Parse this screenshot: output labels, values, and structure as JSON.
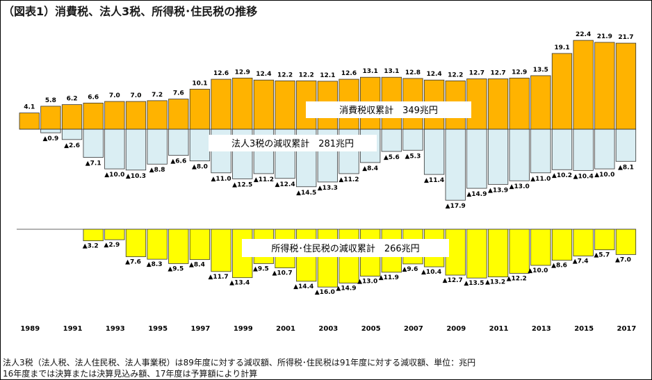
{
  "title": "（図表1）消費税、法人3税、所得税･住民税の推移",
  "notes": [
    "法人3税（法人税、法人住民税、法人事業税）は89年度に対する減収額、所得税･住民税は91年度に対する減収額、単位：兆円",
    "16年度までは決算または決算見込み額、17年度は予算額により計算"
  ],
  "chart_data": [
    {
      "type": "bar",
      "name": "consumption-and-corporate",
      "unit": "兆円",
      "categories": [
        1989,
        1990,
        1991,
        1992,
        1993,
        1994,
        1995,
        1996,
        1997,
        1998,
        1999,
        2000,
        2001,
        2002,
        2003,
        2004,
        2005,
        2006,
        2007,
        2008,
        2009,
        2010,
        2011,
        2012,
        2013,
        2014,
        2015,
        2016,
        2017
      ],
      "series": [
        {
          "name": "消費税",
          "label": "消費税収累計　349兆円",
          "color": "#FFB300",
          "values": [
            4.1,
            5.8,
            6.2,
            6.6,
            7.0,
            7.0,
            7.2,
            7.6,
            10.1,
            12.6,
            12.9,
            12.4,
            12.2,
            12.2,
            12.1,
            12.6,
            13.1,
            13.1,
            12.8,
            12.4,
            12.2,
            12.7,
            12.7,
            12.9,
            13.5,
            19.1,
            22.4,
            21.9,
            21.7
          ],
          "value_labels": [
            "4.1",
            "5.8",
            "6.2",
            "6.6",
            "7.0",
            "7.0",
            "7.2",
            "7.6",
            "10.1",
            "12.6",
            "12.9",
            "12.4",
            "12.2",
            "12.2",
            "12.1",
            "12.6",
            "13.1",
            "13.1",
            "12.8",
            "12.4",
            "12.2",
            "12.7",
            "12.7",
            "12.9",
            "13.5",
            "19.1",
            "22.4",
            "21.9",
            "21.7"
          ]
        },
        {
          "name": "法人3税の減収",
          "label": "法人3税の減収累計　281兆円",
          "color": "#DAEEF3",
          "values": [
            0,
            0.9,
            2.6,
            7.1,
            10.0,
            10.3,
            8.8,
            6.6,
            8.0,
            11.0,
            12.5,
            11.2,
            12.4,
            14.5,
            13.3,
            11.2,
            8.4,
            5.6,
            5.3,
            11.4,
            17.9,
            14.9,
            13.9,
            13.0,
            11.0,
            10.2,
            10.4,
            10.0,
            8.1
          ],
          "value_labels": [
            "",
            "▲0.9",
            "▲2.6",
            "▲7.1",
            "▲10.0",
            "▲10.3",
            "▲8.8",
            "▲6.6",
            "▲8.0",
            "▲11.0",
            "▲12.5",
            "▲11.2",
            "▲12.4",
            "▲14.5",
            "▲13.3",
            "▲11.2",
            "▲8.4",
            "▲5.6",
            "▲5.3",
            "▲11.4",
            "▲17.9",
            "▲14.9",
            "▲13.9",
            "▲13.0",
            "▲11.0",
            "▲10.2",
            "▲10.4",
            "▲10.0",
            "▲8.1"
          ]
        }
      ],
      "ylim": [
        -18,
        23
      ],
      "grid": false,
      "legend": "labels inside plot"
    },
    {
      "type": "bar",
      "name": "income-and-resident",
      "unit": "兆円",
      "categories": [
        1989,
        1990,
        1991,
        1992,
        1993,
        1994,
        1995,
        1996,
        1997,
        1998,
        1999,
        2000,
        2001,
        2002,
        2003,
        2004,
        2005,
        2006,
        2007,
        2008,
        2009,
        2010,
        2011,
        2012,
        2013,
        2014,
        2015,
        2016,
        2017
      ],
      "series": [
        {
          "name": "所得税･住民税の減収",
          "label": "所得税･住民税の減収累計　266兆円",
          "color": "#FFFF00",
          "values": [
            0,
            0,
            0,
            3.2,
            2.9,
            7.6,
            8.3,
            9.5,
            8.4,
            11.7,
            13.4,
            9.5,
            10.7,
            14.4,
            16.0,
            14.9,
            13.0,
            11.9,
            9.6,
            10.4,
            12.7,
            13.5,
            13.2,
            12.2,
            10.0,
            8.6,
            7.4,
            5.7,
            7.0
          ],
          "value_labels": [
            "",
            "",
            "",
            "▲3.2",
            "▲2.9",
            "▲7.6",
            "▲8.3",
            "▲9.5",
            "▲8.4",
            "▲11.7",
            "▲13.4",
            "▲9.5",
            "▲10.7",
            "▲14.4",
            "▲16.0",
            "▲14.9",
            "▲13.0",
            "▲11.9",
            "▲9.6",
            "▲10.4",
            "▲12.7",
            "▲13.5",
            "▲13.2",
            "▲12.2",
            "▲10.0",
            "▲8.6",
            "▲7.4",
            "▲5.7",
            "▲7.0"
          ]
        }
      ],
      "ylim": [
        -17,
        0
      ],
      "grid": false
    }
  ],
  "x_tick_labels": [
    "1989",
    "1991",
    "1993",
    "1995",
    "1997",
    "1999",
    "2001",
    "2003",
    "2005",
    "2007",
    "2009",
    "2011",
    "2013",
    "2015",
    "2017"
  ]
}
